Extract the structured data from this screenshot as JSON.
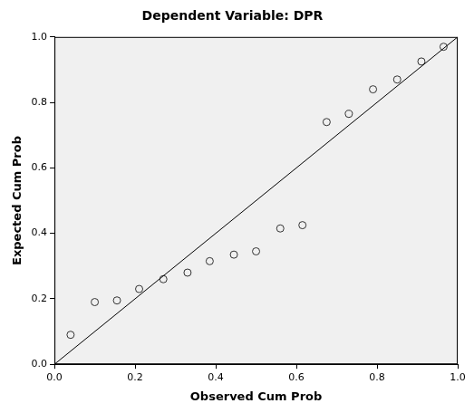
{
  "chart_data": {
    "type": "scatter",
    "title": "Dependent Variable: DPR",
    "x_label": "Observed Cum Prob",
    "y_label": "Expected Cum Prob",
    "x": [
      0.04,
      0.1,
      0.155,
      0.21,
      0.27,
      0.33,
      0.385,
      0.445,
      0.5,
      0.56,
      0.615,
      0.675,
      0.73,
      0.79,
      0.85,
      0.91,
      0.965
    ],
    "values": [
      0.09,
      0.19,
      0.195,
      0.23,
      0.26,
      0.28,
      0.315,
      0.335,
      0.345,
      0.415,
      0.425,
      0.74,
      0.765,
      0.84,
      0.87,
      0.925,
      0.97
    ],
    "reference_line": {
      "x": [
        0,
        1
      ],
      "values": [
        0,
        1
      ]
    },
    "xlim": [
      0,
      1
    ],
    "ylim": [
      0,
      1
    ],
    "xticks": [
      {
        "value": 0,
        "label": "0.0"
      },
      0.2,
      0.4,
      0.6,
      0.8,
      {
        "value": 1,
        "label": "1.0"
      }
    ],
    "yticks": [
      {
        "value": 0,
        "label": "0.0"
      },
      0.2,
      0.4,
      0.6,
      0.8,
      {
        "value": 1,
        "label": "1.0"
      }
    ],
    "grid": false,
    "marker": "circle",
    "color": "#333333"
  }
}
